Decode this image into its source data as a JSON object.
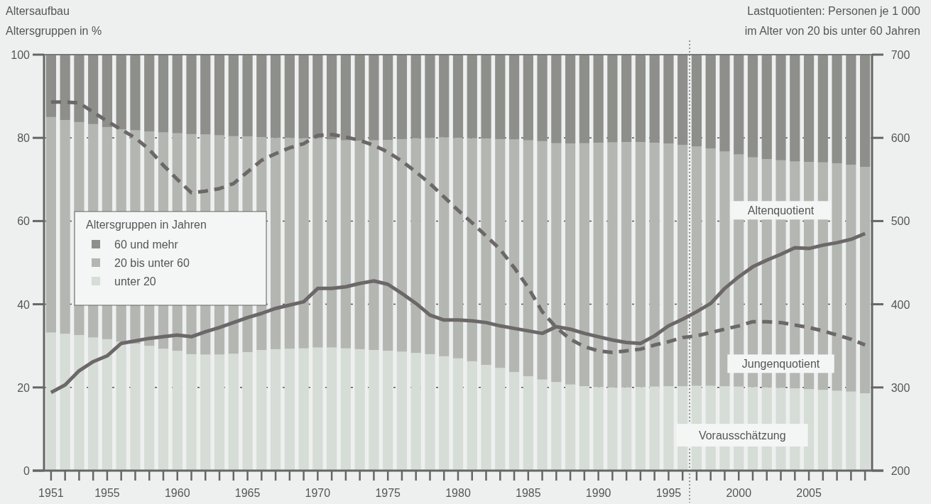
{
  "chart_data": {
    "type": "bar",
    "stacked": true,
    "title": "Altersaufbau",
    "ylabel": "Altersgruppen in %",
    "y2label": "Lastquotienten: Personen je 1 000 im Alter von 20 bis unter 60 Jahren",
    "legend_title": "Altersgruppen in Jahren",
    "legend": "left",
    "grid": "y",
    "x": [
      1951,
      1952,
      1953,
      1954,
      1955,
      1956,
      1957,
      1958,
      1959,
      1960,
      1961,
      1962,
      1963,
      1964,
      1965,
      1966,
      1967,
      1968,
      1969,
      1970,
      1971,
      1972,
      1973,
      1974,
      1975,
      1976,
      1977,
      1978,
      1979,
      1980,
      1981,
      1982,
      1983,
      1984,
      1985,
      1986,
      1987,
      1988,
      1989,
      1990,
      1991,
      1992,
      1993,
      1994,
      1995,
      1996,
      1997,
      1998,
      1999,
      2000,
      2001,
      2002,
      2003,
      2004,
      2005,
      2006,
      2007,
      2008,
      2009
    ],
    "xlim": [
      1950.5,
      2009.5
    ],
    "xticks": [
      1951,
      {
        "value": 1952,
        "label": null
      },
      {
        "value": 1953,
        "label": null
      },
      {
        "value": 1954,
        "label": null
      },
      1955,
      {
        "value": 1956,
        "label": null
      },
      {
        "value": 1957,
        "label": null
      },
      {
        "value": 1958,
        "label": null
      },
      {
        "value": 1959,
        "label": null
      },
      1960,
      {
        "value": 1961,
        "label": null
      },
      {
        "value": 1962,
        "label": null
      },
      {
        "value": 1963,
        "label": null
      },
      {
        "value": 1964,
        "label": null
      },
      1965,
      {
        "value": 1966,
        "label": null
      },
      {
        "value": 1967,
        "label": null
      },
      {
        "value": 1968,
        "label": null
      },
      {
        "value": 1969,
        "label": null
      },
      1970,
      {
        "value": 1971,
        "label": null
      },
      {
        "value": 1972,
        "label": null
      },
      {
        "value": 1973,
        "label": null
      },
      {
        "value": 1974,
        "label": null
      },
      1975,
      {
        "value": 1976,
        "label": null
      },
      {
        "value": 1977,
        "label": null
      },
      {
        "value": 1978,
        "label": null
      },
      {
        "value": 1979,
        "label": null
      },
      1980,
      {
        "value": 1981,
        "label": null
      },
      {
        "value": 1982,
        "label": null
      },
      {
        "value": 1983,
        "label": null
      },
      {
        "value": 1984,
        "label": null
      },
      1985,
      {
        "value": 1986,
        "label": null
      },
      {
        "value": 1987,
        "label": null
      },
      {
        "value": 1988,
        "label": null
      },
      {
        "value": 1989,
        "label": null
      },
      1990,
      {
        "value": 1991,
        "label": null
      },
      {
        "value": 1992,
        "label": null
      },
      {
        "value": 1993,
        "label": null
      },
      {
        "value": 1994,
        "label": null
      },
      1995,
      {
        "value": 1996,
        "label": null
      },
      {
        "value": 1997,
        "label": null
      },
      {
        "value": 1998,
        "label": null
      },
      {
        "value": 1999,
        "label": null
      },
      2000,
      {
        "value": 2001,
        "label": null
      },
      {
        "value": 2002,
        "label": null
      },
      {
        "value": 2003,
        "label": null
      },
      {
        "value": 2004,
        "label": null
      },
      2005,
      {
        "value": 2006,
        "label": null
      },
      {
        "value": 2007,
        "label": null
      },
      {
        "value": 2008,
        "label": null
      },
      {
        "value": 2009,
        "label": null
      }
    ],
    "ylim": [
      0,
      100
    ],
    "yticks": [
      0,
      20,
      40,
      60,
      80,
      100
    ],
    "y2lim": [
      200,
      700
    ],
    "y2ticks": [
      200,
      300,
      400,
      500,
      600,
      700
    ],
    "ref_lines": [
      {
        "axis": "x",
        "value": 1996.5,
        "line_style": "dotted",
        "color": "#555555"
      }
    ],
    "annotations": [
      "Vorausschätzung"
    ],
    "series": [
      {
        "name": "unter 20",
        "color": "#d6dcd6",
        "values": [
          33.2,
          32.9,
          32.6,
          32.0,
          31.6,
          31.0,
          30.5,
          30.0,
          29.3,
          28.8,
          28.0,
          27.9,
          27.9,
          28.1,
          28.5,
          29.0,
          29.2,
          29.3,
          29.4,
          29.6,
          29.6,
          29.4,
          29.2,
          29.0,
          28.8,
          28.6,
          28.3,
          28.0,
          27.5,
          27.0,
          26.3,
          25.4,
          24.7,
          23.7,
          22.7,
          21.9,
          21.3,
          20.7,
          20.3,
          20.1,
          20.0,
          20.0,
          20.1,
          20.2,
          20.3,
          20.3,
          20.4,
          20.4,
          20.3,
          20.2,
          20.1,
          20.0,
          19.9,
          19.8,
          19.6,
          19.4,
          19.2,
          19.0,
          18.6
        ]
      },
      {
        "name": "20 bis unter 60",
        "color": "#b4b6b2",
        "values": [
          51.8,
          51.4,
          51.2,
          51.3,
          51.0,
          51.0,
          51.3,
          51.5,
          52.0,
          52.3,
          52.9,
          52.9,
          52.7,
          52.3,
          51.8,
          51.2,
          50.8,
          50.7,
          50.5,
          50.3,
          50.0,
          50.0,
          50.1,
          50.4,
          50.7,
          51.1,
          51.6,
          52.0,
          52.6,
          53.0,
          53.6,
          54.4,
          55.0,
          55.9,
          56.7,
          57.3,
          57.4,
          57.9,
          58.4,
          58.7,
          58.9,
          59.0,
          58.9,
          58.6,
          58.3,
          58.0,
          57.5,
          57.0,
          56.4,
          55.8,
          55.2,
          54.9,
          54.7,
          54.5,
          54.6,
          54.7,
          54.7,
          54.5,
          54.4
        ]
      },
      {
        "name": "60 und mehr",
        "color": "#8e8f8b",
        "values": [
          15.0,
          15.7,
          16.2,
          16.7,
          17.4,
          18.0,
          18.2,
          18.5,
          18.7,
          18.9,
          19.1,
          19.2,
          19.4,
          19.6,
          19.7,
          19.8,
          20.0,
          20.0,
          20.1,
          20.1,
          20.4,
          20.6,
          20.7,
          20.6,
          20.5,
          20.3,
          20.1,
          20.0,
          19.9,
          20.0,
          20.1,
          20.2,
          20.3,
          20.4,
          20.6,
          20.8,
          21.3,
          21.4,
          21.3,
          21.2,
          21.1,
          21.0,
          21.0,
          21.2,
          21.4,
          21.7,
          22.1,
          22.6,
          23.3,
          24.0,
          24.7,
          25.1,
          25.4,
          25.7,
          25.8,
          25.9,
          26.1,
          26.5,
          27.0
        ]
      },
      {
        "name": "Altenquotient",
        "type": "line",
        "axis": "y2",
        "line_style": "solid",
        "color": "#6c6869",
        "values": [
          294,
          303,
          320,
          331,
          338,
          353,
          356,
          359,
          361,
          363,
          361,
          367,
          372,
          378,
          384,
          389,
          395,
          399,
          403,
          419,
          419,
          421,
          425,
          428,
          424,
          413,
          401,
          387,
          381,
          381,
          380,
          378,
          374,
          371,
          368,
          365,
          373,
          370,
          365,
          361,
          357,
          354,
          353,
          362,
          374,
          382,
          391,
          401,
          419,
          433,
          445,
          453,
          460,
          468,
          467,
          471,
          474,
          478,
          485
        ]
      },
      {
        "name": "Jungenquotient",
        "type": "line",
        "axis": "y2",
        "line_style": "dashed",
        "color": "#6c6869",
        "values": [
          643,
          643,
          642,
          631,
          620,
          610,
          600,
          586,
          567,
          550,
          534,
          536,
          539,
          545,
          559,
          573,
          581,
          588,
          593,
          603,
          604,
          601,
          597,
          591,
          583,
          572,
          559,
          545,
          529,
          513,
          498,
          482,
          466,
          444,
          420,
          391,
          372,
          358,
          349,
          344,
          342,
          344,
          346,
          351,
          355,
          360,
          362,
          366,
          370,
          374,
          379,
          379,
          378,
          375,
          372,
          368,
          363,
          358,
          351
        ]
      }
    ]
  }
}
